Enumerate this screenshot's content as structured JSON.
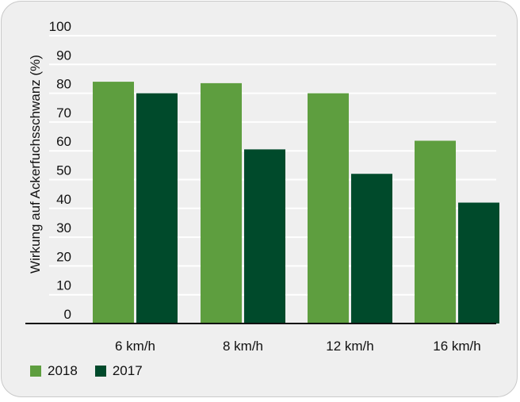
{
  "chart_data": {
    "type": "bar",
    "title": "",
    "xlabel": "",
    "ylabel": "Wirkung auf Ackerfuchsschwanz (%)",
    "categories": [
      "6 km/h",
      "8 km/h",
      "12 km/h",
      "16 km/h"
    ],
    "series": [
      {
        "name": "2018",
        "values": [
          84,
          83.5,
          80,
          63.5
        ],
        "color": "#5e9e3f"
      },
      {
        "name": "2017",
        "values": [
          80,
          60.5,
          52,
          42
        ],
        "color": "#004a2b"
      }
    ],
    "ylim": [
      0,
      100
    ],
    "yticks": [
      "0",
      "10",
      "20",
      "30",
      "40",
      "50",
      "60",
      "70",
      "80",
      "90",
      "100"
    ],
    "grid": true,
    "legend": "bottom-left"
  }
}
